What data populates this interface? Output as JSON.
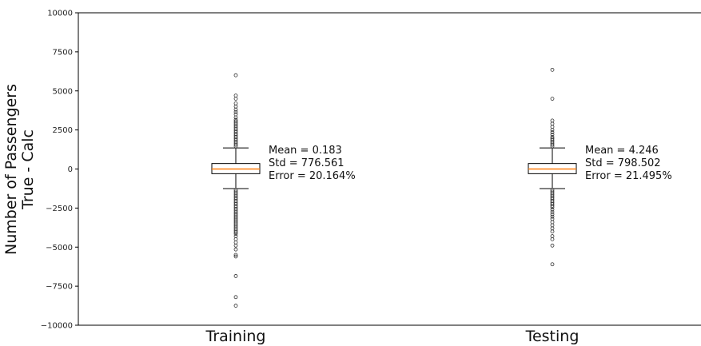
{
  "chart_data": {
    "type": "box",
    "ylabel_lines": [
      "Number of Passengers",
      "True - Calc"
    ],
    "ylim": [
      -10000,
      10000
    ],
    "yticks": [
      10000,
      7500,
      5000,
      2500,
      0,
      -2500,
      -5000,
      -7500,
      -10000
    ],
    "ytick_labels": [
      "10000",
      "7500",
      "5000",
      "2500",
      "0",
      "−2500",
      "−5000",
      "−7500",
      "−10000"
    ],
    "categories": [
      "Training",
      "Testing"
    ],
    "boxes": [
      {
        "name": "Training",
        "q1": -300,
        "median": 0,
        "q3": 350,
        "whisker_low": -1250,
        "whisker_high": 1350,
        "outliers_high": [
          1450,
          1550,
          1650,
          1750,
          1850,
          1950,
          2050,
          2150,
          2250,
          2350,
          2450,
          2550,
          2650,
          2750,
          2850,
          2950,
          3050,
          3150,
          3300,
          3500,
          3650,
          3800,
          4000,
          4200,
          4500,
          4700,
          6000
        ],
        "outliers_low": [
          -1350,
          -1450,
          -1550,
          -1650,
          -1750,
          -1850,
          -1950,
          -2050,
          -2150,
          -2250,
          -2350,
          -2450,
          -2550,
          -2650,
          -2750,
          -2850,
          -2950,
          -3050,
          -3150,
          -3250,
          -3350,
          -3450,
          -3550,
          -3650,
          -3750,
          -3850,
          -3950,
          -4050,
          -4150,
          -4300,
          -4500,
          -4700,
          -4900,
          -5150,
          -5500,
          -5600,
          -6850,
          -8200,
          -8750
        ],
        "stats": [
          "Mean  = 0.183",
          "Std = 776.561",
          "Error = 20.164%"
        ]
      },
      {
        "name": "Testing",
        "q1": -300,
        "median": 0,
        "q3": 350,
        "whisker_low": -1250,
        "whisker_high": 1350,
        "outliers_high": [
          1450,
          1550,
          1650,
          1750,
          1850,
          1950,
          2050,
          2200,
          2350,
          2500,
          2700,
          2900,
          3100,
          4500,
          6350
        ],
        "outliers_low": [
          -1350,
          -1450,
          -1550,
          -1650,
          -1750,
          -1850,
          -1950,
          -2050,
          -2150,
          -2250,
          -2350,
          -2450,
          -2600,
          -2750,
          -2900,
          -3050,
          -3200,
          -3400,
          -3600,
          -3800,
          -4000,
          -4300,
          -4500,
          -4900,
          -6100
        ],
        "stats": [
          "Mean  = 4.246",
          "Std = 798.502",
          "Error = 21.495%"
        ]
      }
    ],
    "grid": false,
    "colors": {
      "box": "#000000",
      "median": "#ff7f0e",
      "axis": "#000000"
    }
  }
}
